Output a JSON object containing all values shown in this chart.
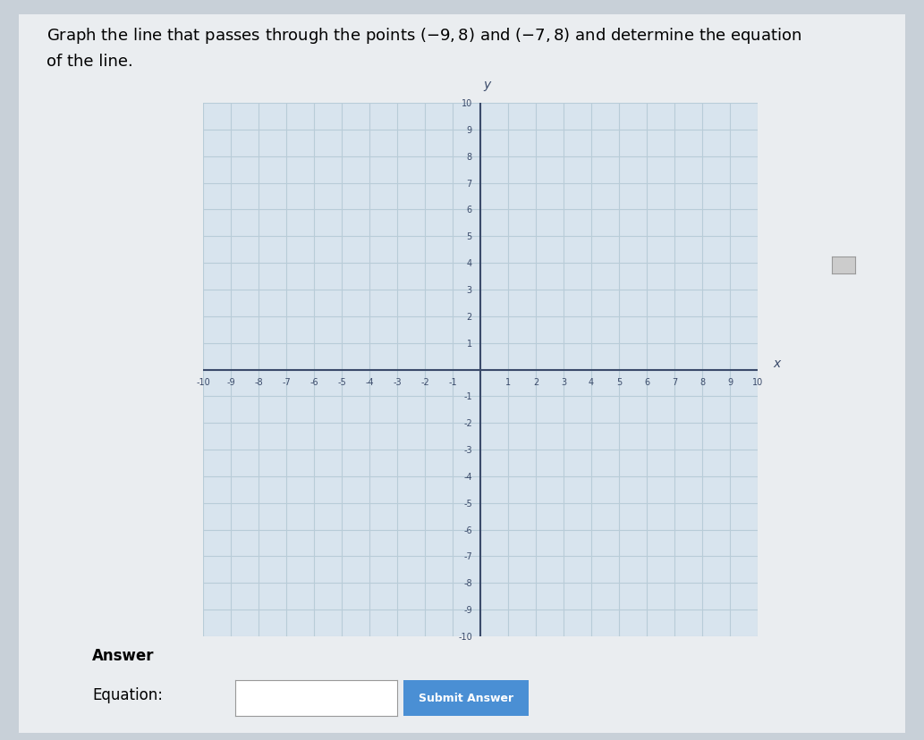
{
  "point1": [
    -9,
    8
  ],
  "point2": [
    -7,
    8
  ],
  "xlim": [
    -10,
    10
  ],
  "ylim": [
    -10,
    10
  ],
  "grid_color": "#b8ccd8",
  "axis_color": "#3a4a6a",
  "plot_bg_color": "#d8e4ee",
  "line_color": "#2c3e60",
  "answer_label": "Answer",
  "equation_label": "Equation:",
  "submit_button_text": "Submit Answer",
  "submit_button_color": "#4a8fd4",
  "page_bg": "#c8d0d8",
  "card_bg": "#eaedf0",
  "title_line1": "Graph the line that passes through the points $(-9,8)$ and $(-7,8)$ and determine the equation",
  "title_line2": "of the line.",
  "title_fontsize": 13
}
